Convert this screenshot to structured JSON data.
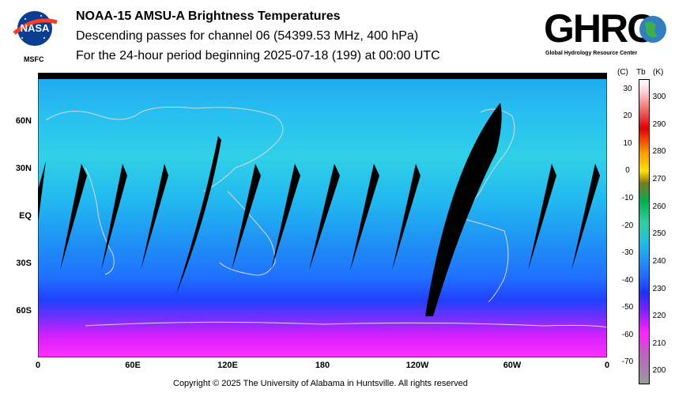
{
  "header": {
    "title": "NOAA-15 AMSU-A Brightness Temperatures",
    "line2": "Descending passes for channel 06 (54399.53 MHz, 400 hPa)",
    "line3": "For the 24-hour period beginning 2025-07-18 (199) at 00:00 UTC"
  },
  "logos": {
    "nasa": "NASA",
    "msfc": "MSFC",
    "ghrc": "GHRC",
    "ghrc_sub": "Global Hydrology Resource Center"
  },
  "map": {
    "lat_labels": [
      "60N",
      "30N",
      "EQ",
      "30S",
      "60S"
    ],
    "lon_labels": [
      "0",
      "60E",
      "120E",
      "180",
      "120W",
      "60W",
      "0"
    ]
  },
  "colorbar": {
    "label_c": "(C)",
    "label_tb": "Tb",
    "label_k": "(K)",
    "celsius": [
      "30",
      "20",
      "10",
      "0",
      "-10",
      "-20",
      "-30",
      "-40",
      "-50",
      "-60",
      "-70"
    ],
    "kelvin": [
      "300",
      "290",
      "280",
      "270",
      "260",
      "250",
      "240",
      "230",
      "220",
      "210",
      "200"
    ],
    "colors": {
      "top": "#ffffff",
      "hot": "#e00000",
      "warm": "#ff9a00",
      "mid": "#ffe000",
      "olive": "#7a7a20",
      "green": "#00b050",
      "cyan": "#20c0e0",
      "blue": "#2060ff",
      "violet": "#8020ff",
      "magenta": "#ff20ff",
      "low": "#9a9a9a"
    }
  },
  "footer": "Copyright © 2025 The University of Alabama in Huntsville.  All rights reserved"
}
